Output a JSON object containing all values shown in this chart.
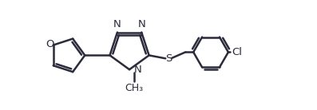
{
  "bg_color": "#ffffff",
  "line_color": "#2b2b3b",
  "line_width": 1.8,
  "font_size": 9.5,
  "figsize": [
    3.97,
    1.38
  ],
  "dpi": 100,
  "xlim": [
    0,
    12
  ],
  "ylim": [
    -0.5,
    4.0
  ]
}
